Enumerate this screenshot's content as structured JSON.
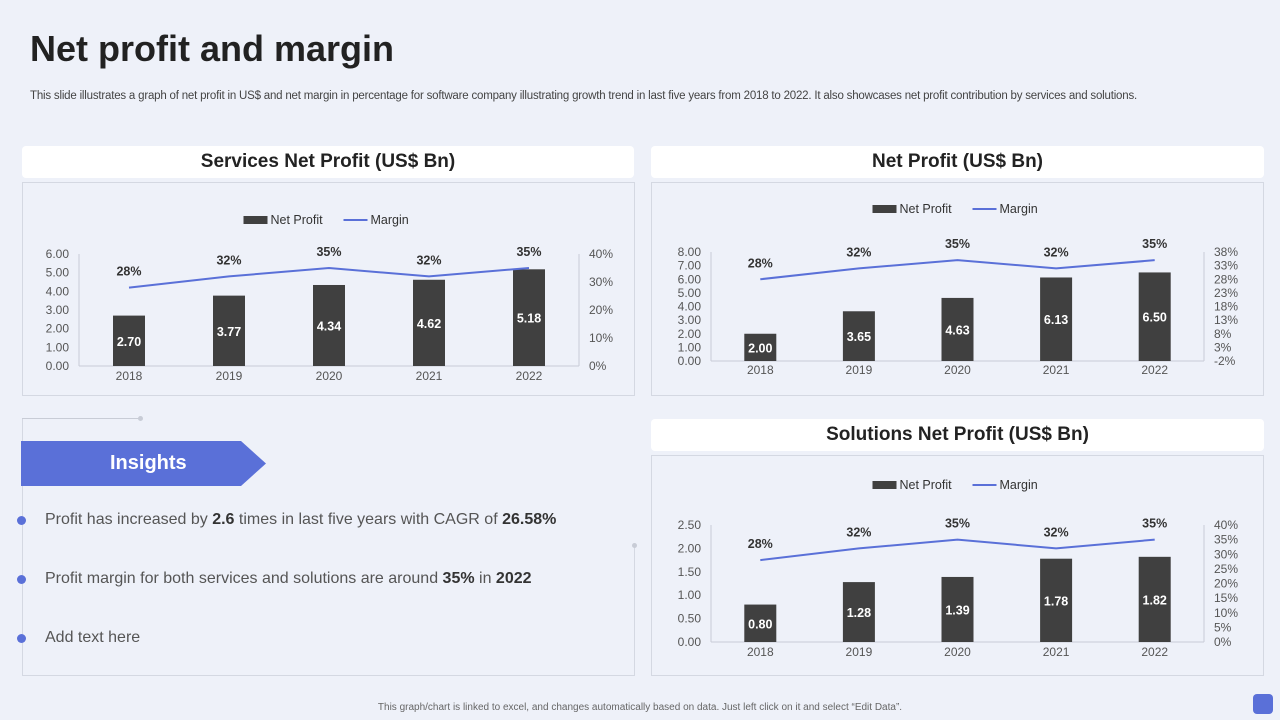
{
  "title": "Net profit and margin",
  "subtitle": "This slide illustrates a graph of net profit in US$ and net margin in percentage for software company illustrating growth trend in last five years from 2018 to 2022. It also showcases net profit contribution by services and solutions.",
  "insights": {
    "heading": "Insights",
    "bullets": [
      {
        "pre": "Profit has increased by ",
        "b1": "2.6",
        "mid": " times in last five years with CAGR of ",
        "b2": "26.58%",
        "post": ""
      },
      {
        "pre": "Profit margin for both services and solutions are around ",
        "b1": "35%",
        "mid": " in ",
        "b2": "2022",
        "post": ""
      },
      {
        "pre": "Add text here",
        "b1": "",
        "mid": "",
        "b2": "",
        "post": ""
      }
    ]
  },
  "footer": "This graph/chart is linked to excel, and changes automatically based on data. Just left click on it and select “Edit Data”.",
  "colors": {
    "bar": "#404040",
    "line": "#5a70d8",
    "accent": "#5a70d8"
  },
  "chart_data": [
    {
      "type": "bar",
      "title": "Services Net Profit (US$ Bn)",
      "legend": [
        "Net Profit",
        "Margin"
      ],
      "legend_position": "top-center",
      "categories": [
        "2018",
        "2019",
        "2020",
        "2021",
        "2022"
      ],
      "series": [
        {
          "name": "Net Profit",
          "values": [
            2.7,
            3.77,
            4.34,
            4.62,
            5.18
          ],
          "labels": [
            "2.70",
            "3.77",
            "4.34",
            "4.62",
            "5.18"
          ]
        },
        {
          "name": "Margin",
          "type": "line",
          "values": [
            28,
            32,
            35,
            32,
            35
          ],
          "labels": [
            "28%",
            "32%",
            "35%",
            "32%",
            "35%"
          ]
        }
      ],
      "ylim": [
        0,
        6
      ],
      "yticks": [
        "0.00",
        "1.00",
        "2.00",
        "3.00",
        "4.00",
        "5.00",
        "6.00"
      ],
      "y2lim": [
        0,
        40
      ],
      "y2ticks": [
        "0%",
        "10%",
        "20%",
        "30%",
        "40%"
      ]
    },
    {
      "type": "bar",
      "title": "Net Profit (US$ Bn)",
      "legend": [
        "Net Profit",
        "Margin"
      ],
      "legend_position": "top-center",
      "categories": [
        "2018",
        "2019",
        "2020",
        "2021",
        "2022"
      ],
      "series": [
        {
          "name": "Net Profit",
          "values": [
            2.0,
            3.65,
            4.63,
            6.13,
            6.5
          ],
          "labels": [
            "2.00",
            "3.65",
            "4.63",
            "6.13",
            "6.50"
          ]
        },
        {
          "name": "Margin",
          "type": "line",
          "values": [
            28,
            32,
            35,
            32,
            35
          ],
          "labels": [
            "28%",
            "32%",
            "35%",
            "32%",
            "35%"
          ]
        }
      ],
      "ylim": [
        0,
        8
      ],
      "yticks": [
        "0.00",
        "1.00",
        "2.00",
        "3.00",
        "4.00",
        "5.00",
        "6.00",
        "7.00",
        "8.00"
      ],
      "y2lim": [
        -2,
        38
      ],
      "y2ticks": [
        "-2%",
        "3%",
        "8%",
        "13%",
        "18%",
        "23%",
        "28%",
        "33%",
        "38%"
      ]
    },
    {
      "type": "bar",
      "title": "Solutions Net Profit (US$ Bn)",
      "legend": [
        "Net Profit",
        "Margin"
      ],
      "legend_position": "top-center",
      "categories": [
        "2018",
        "2019",
        "2020",
        "2021",
        "2022"
      ],
      "series": [
        {
          "name": "Net Profit",
          "values": [
            0.8,
            1.28,
            1.39,
            1.78,
            1.82
          ],
          "labels": [
            "0.80",
            "1.28",
            "1.39",
            "1.78",
            "1.82"
          ]
        },
        {
          "name": "Margin",
          "type": "line",
          "values": [
            28,
            32,
            35,
            32,
            35
          ],
          "labels": [
            "28%",
            "32%",
            "35%",
            "32%",
            "35%"
          ]
        }
      ],
      "ylim": [
        0,
        2.5
      ],
      "yticks": [
        "0.00",
        "0.50",
        "1.00",
        "1.50",
        "2.00",
        "2.50"
      ],
      "y2lim": [
        0,
        40
      ],
      "y2ticks": [
        "0%",
        "5%",
        "10%",
        "15%",
        "20%",
        "25%",
        "30%",
        "35%",
        "40%"
      ]
    }
  ]
}
